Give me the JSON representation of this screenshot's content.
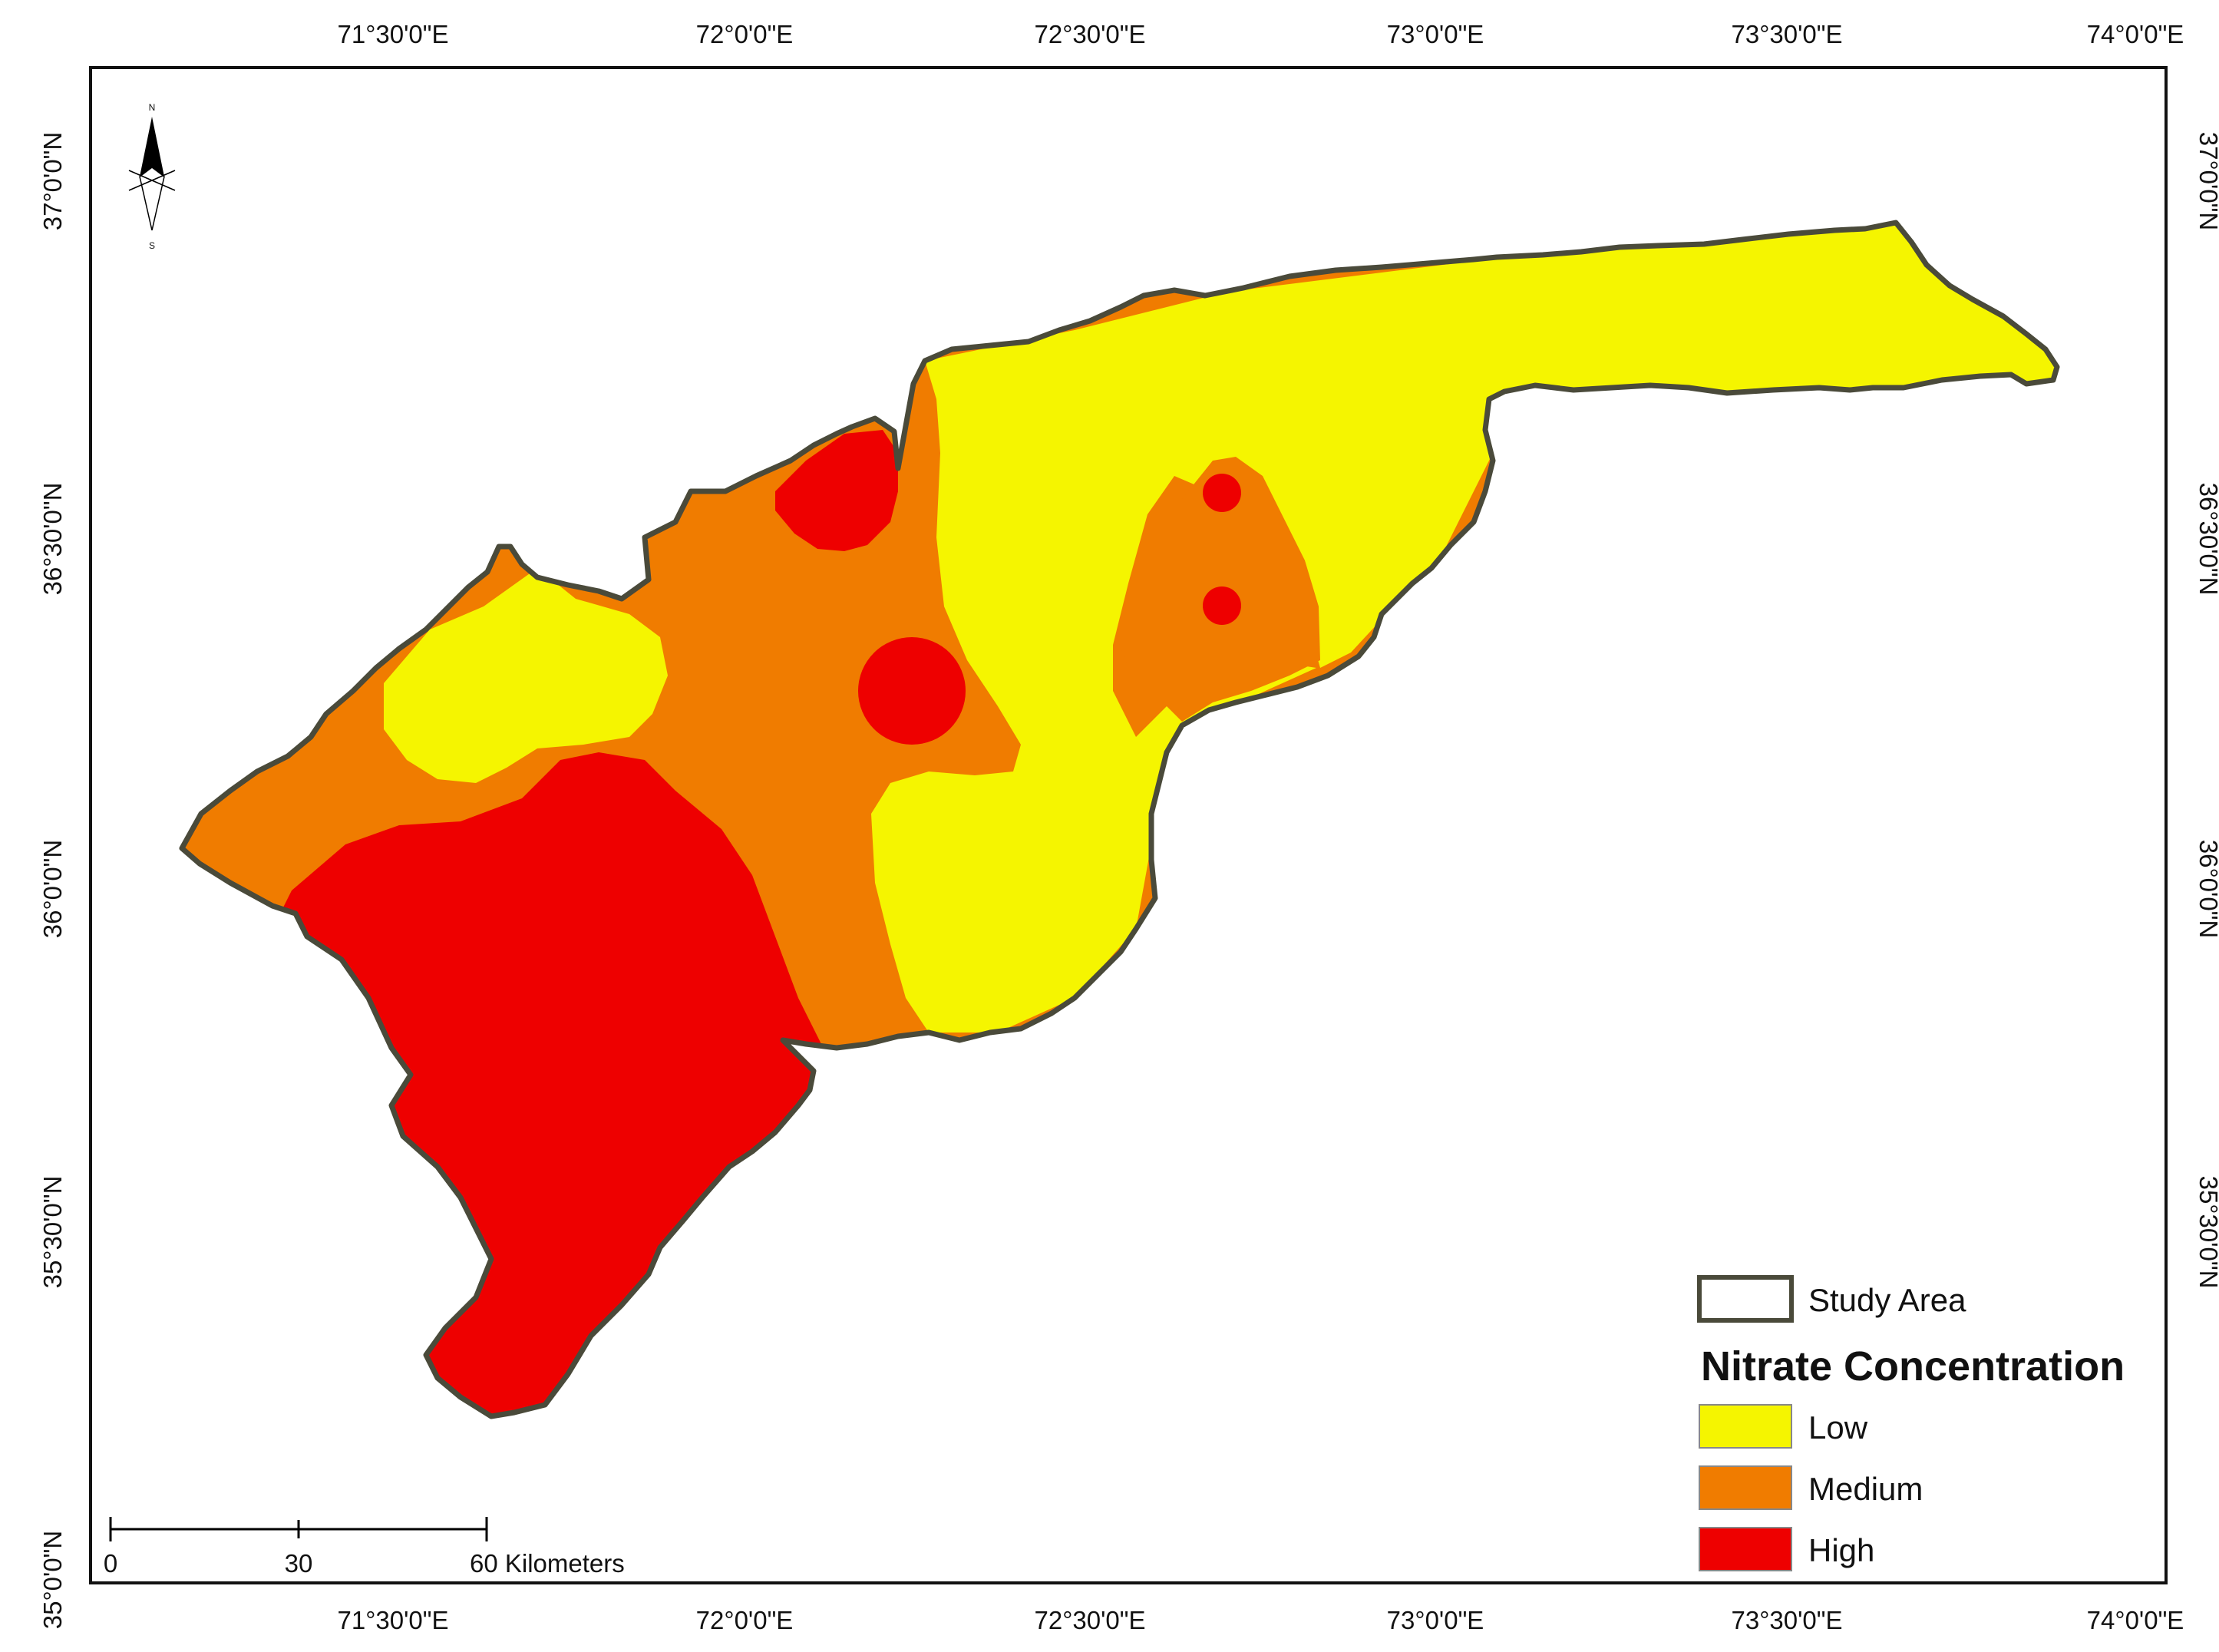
{
  "map": {
    "top_lon_labels": [
      "71°30'0\"E",
      "72°0'0\"E",
      "72°30'0\"E",
      "73°0'0\"E",
      "73°30'0\"E",
      "74°0'0\"E"
    ],
    "bottom_lon_labels": [
      "71°30'0\"E",
      "72°0'0\"E",
      "72°30'0\"E",
      "73°0'0\"E",
      "73°30'0\"E",
      "74°0'0\"E"
    ],
    "left_lat_labels": [
      "37°0'0\"N",
      "36°30'0\"N",
      "36°0'0\"N",
      "35°30'0\"N",
      "35°0'0\"N"
    ],
    "right_lat_labels": [
      "37°0'0\"N",
      "36°30'0\"N",
      "36°0'0\"N",
      "35°30'0\"N"
    ],
    "north_arrow": {
      "icon": "north-arrow-icon",
      "north_label": "N",
      "south_label": "S"
    },
    "scale_bar": {
      "labels": [
        "0",
        "30",
        "60 Kilometers"
      ]
    },
    "legend": {
      "boundary_label": "Study Area",
      "title": "Nitrate Concentration",
      "classes": [
        {
          "label": "Low",
          "color": "#f5f500"
        },
        {
          "label": "Medium",
          "color": "#f07c00"
        },
        {
          "label": "High",
          "color": "#ee0000"
        }
      ],
      "boundary_color": "#4a4a3a"
    }
  }
}
